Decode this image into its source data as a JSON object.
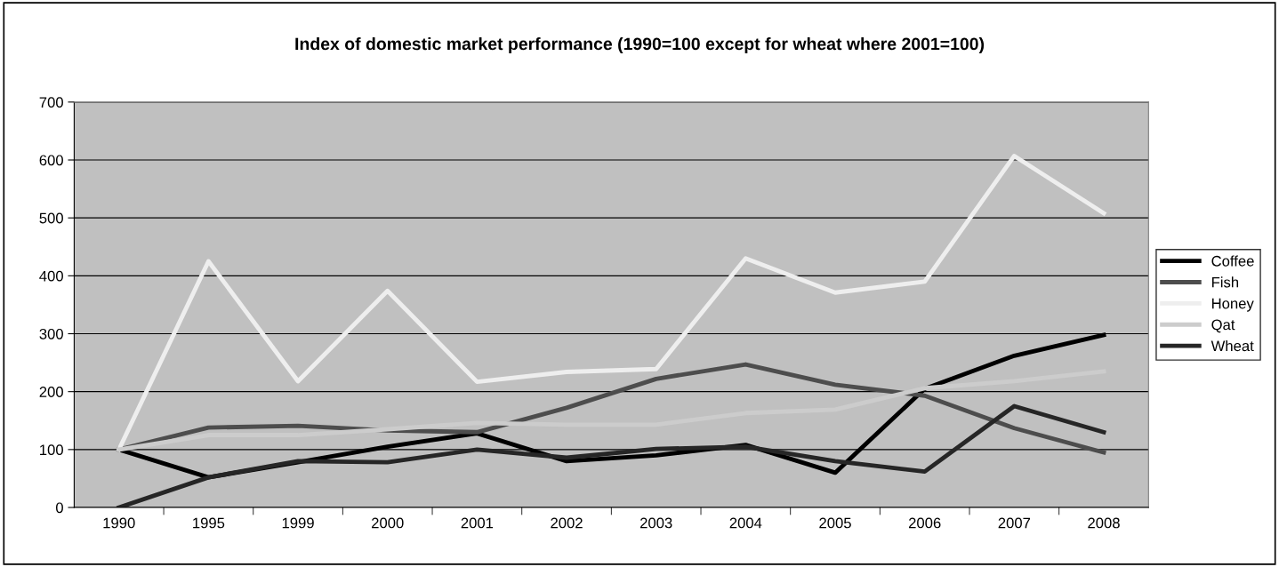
{
  "chart_data": {
    "type": "line",
    "title": "Index of domestic market performance (1990=100 except for wheat where 2001=100)",
    "categories": [
      "1990",
      "1995",
      "1999",
      "2000",
      "2001",
      "2002",
      "2003",
      "2004",
      "2005",
      "2006",
      "2007",
      "2008"
    ],
    "series": [
      {
        "name": "Coffee",
        "color": "#000000",
        "values": [
          100,
          52,
          78,
          105,
          128,
          80,
          90,
          108,
          60,
          205,
          262,
          298
        ]
      },
      {
        "name": "Fish",
        "color": "#4d4d4d",
        "values": [
          100,
          138,
          141,
          133,
          130,
          172,
          222,
          247,
          212,
          193,
          137,
          95
        ]
      },
      {
        "name": "Honey",
        "color": "#eeeeee",
        "values": [
          100,
          425,
          218,
          374,
          217,
          234,
          239,
          430,
          371,
          390,
          607,
          508
        ]
      },
      {
        "name": "Qat",
        "color": "#cccccc",
        "values": [
          100,
          125,
          125,
          135,
          146,
          143,
          143,
          163,
          169,
          206,
          218,
          235
        ]
      },
      {
        "name": "Wheat",
        "color": "#262626",
        "values": [
          0,
          52,
          80,
          78,
          100,
          86,
          101,
          105,
          80,
          62,
          175,
          130
        ]
      }
    ],
    "ylim": [
      0,
      700
    ],
    "yticks": [
      0,
      100,
      200,
      300,
      400,
      500,
      600,
      700
    ],
    "grid": "y",
    "legend": "right",
    "marker": "none",
    "line_style": "solid"
  }
}
